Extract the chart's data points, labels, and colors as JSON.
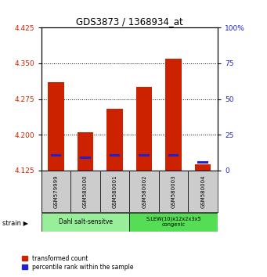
{
  "title": "GDS3873 / 1368934_at",
  "categories": [
    "GSM579999",
    "GSM580000",
    "GSM580001",
    "GSM580002",
    "GSM580003",
    "GSM580004"
  ],
  "red_values": [
    4.31,
    4.205,
    4.255,
    4.3,
    4.36,
    4.137
  ],
  "blue_values": [
    10.5,
    9.0,
    10.5,
    10.5,
    10.5,
    5.5
  ],
  "ylim_left": [
    4.125,
    4.425
  ],
  "ylim_right": [
    0,
    100
  ],
  "yticks_left": [
    4.125,
    4.2,
    4.275,
    4.35,
    4.425
  ],
  "yticks_right": [
    0,
    25,
    50,
    75,
    100
  ],
  "ytick_labels_right": [
    "0",
    "25",
    "50",
    "75",
    "100%"
  ],
  "bar_width": 0.55,
  "red_color": "#cc2200",
  "blue_color": "#2222cc",
  "group1_label": "Dahl salt-sensitve",
  "group2_label": "S.LEW(10)x12x2x3x5\ncongenic",
  "group1_color": "#99ee99",
  "group2_color": "#55dd55",
  "legend1": "transformed count",
  "legend2": "percentile rank within the sample",
  "strain_label": "strain",
  "tick_color_left": "#cc2200",
  "tick_color_right": "#2222cc",
  "grid_yticks": [
    4.2,
    4.275,
    4.35
  ],
  "gray_cell_color": "#cccccc"
}
